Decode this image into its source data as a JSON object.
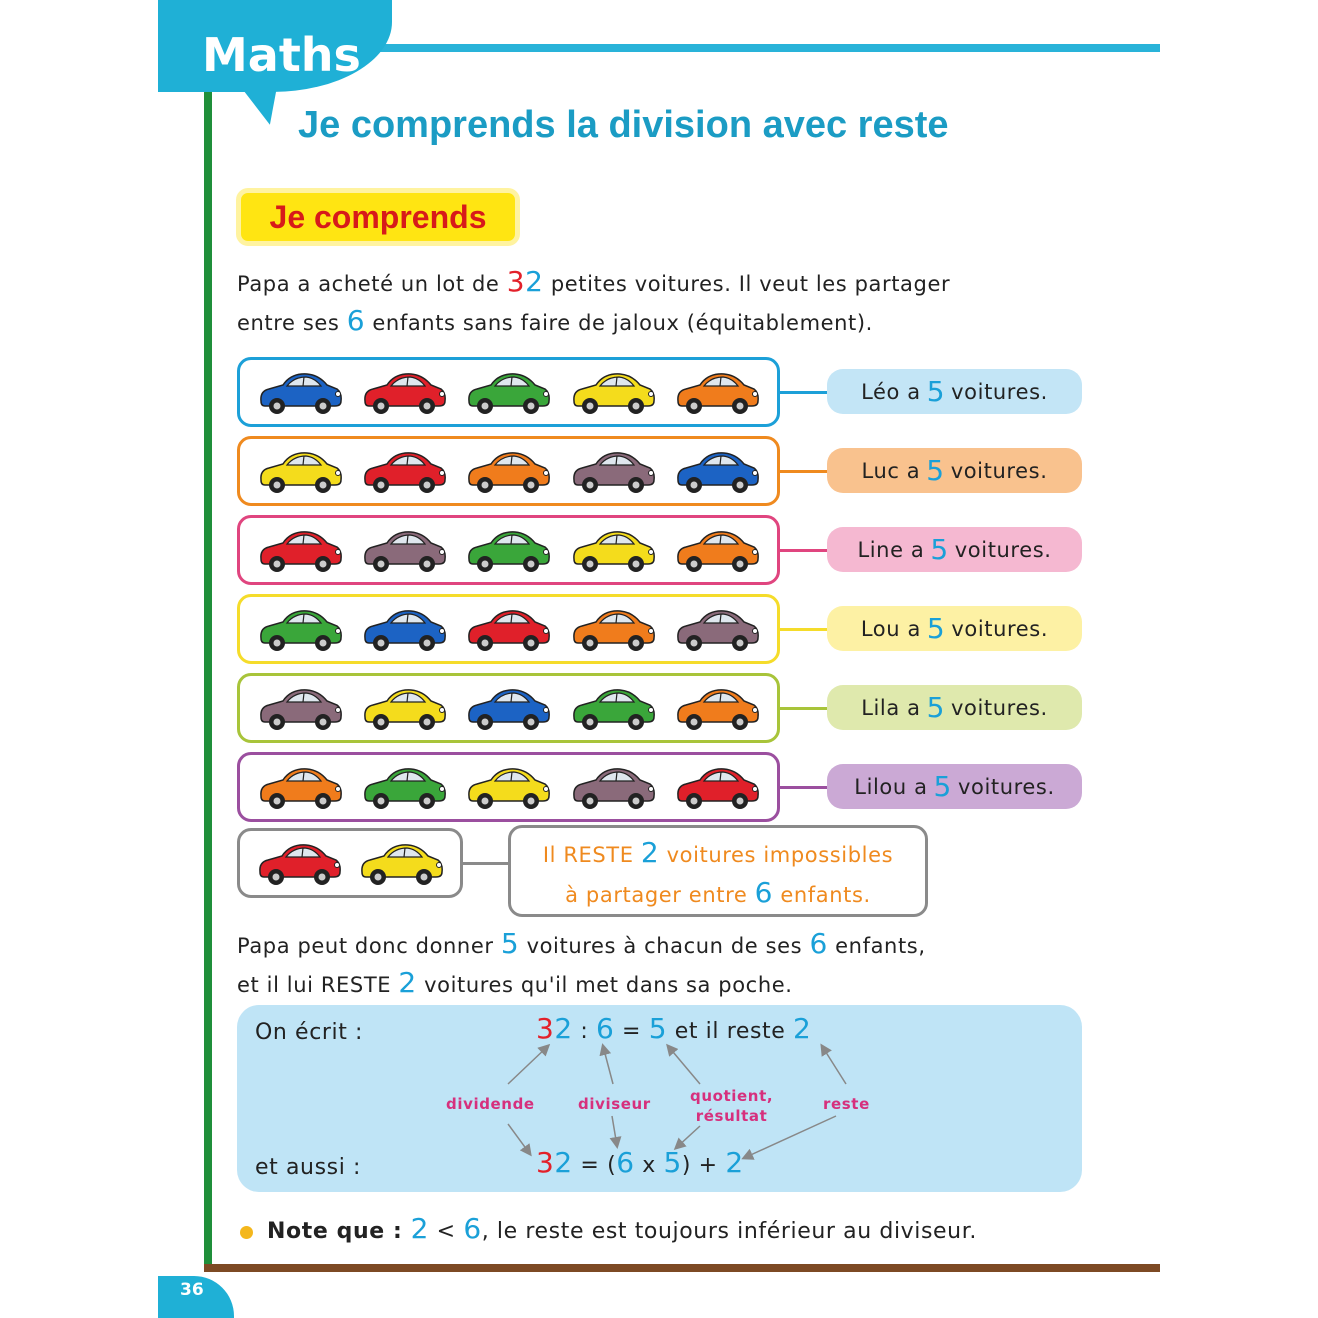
{
  "header": {
    "subject": "Maths",
    "title": "Je comprends la division avec reste"
  },
  "section": {
    "badge": "Je comprends"
  },
  "intro": {
    "line1_a": "Papa a acheté un lot de ",
    "line1_n1": "3",
    "line1_n2": "2",
    "line1_b": " petites voitures. Il veut les partager",
    "line2_a": "entre ses ",
    "line2_n": "6",
    "line2_b": " enfants sans faire de jaloux (équitablement)."
  },
  "rows": [
    {
      "name": "Léo",
      "count": "5",
      "suffix": "voitures.",
      "border": "#1ca0d8",
      "fill": "#c3e5f6",
      "cars": [
        "#1c63c4",
        "#e0202a",
        "#3aa63a",
        "#f4dc1c",
        "#f07c1c"
      ]
    },
    {
      "name": "Luc",
      "count": "5",
      "suffix": "voitures.",
      "border": "#ef8a1f",
      "fill": "#f9c28e",
      "cars": [
        "#f4dc1c",
        "#e0202a",
        "#f07c1c",
        "#8a6a7a",
        "#1c63c4"
      ]
    },
    {
      "name": "Line",
      "count": "5",
      "suffix": "voitures.",
      "border": "#e0457f",
      "fill": "#f5b8d1",
      "cars": [
        "#e0202a",
        "#8a6a7a",
        "#3aa63a",
        "#f4dc1c",
        "#f07c1c"
      ]
    },
    {
      "name": "Lou",
      "count": "5",
      "suffix": "voitures.",
      "border": "#f5dc2a",
      "fill": "#fdf1a4",
      "cars": [
        "#3aa63a",
        "#1c63c4",
        "#e0202a",
        "#f07c1c",
        "#8a6a7a"
      ]
    },
    {
      "name": "Lila",
      "count": "5",
      "suffix": "voitures.",
      "border": "#a8c43a",
      "fill": "#dfe9ad",
      "cars": [
        "#8a6a7a",
        "#f4dc1c",
        "#1c63c4",
        "#3aa63a",
        "#f07c1c"
      ]
    },
    {
      "name": "Lilou",
      "count": "5",
      "suffix": "voitures.",
      "border": "#9b4f9f",
      "fill": "#cba9d5",
      "cars": [
        "#f07c1c",
        "#3aa63a",
        "#f4dc1c",
        "#8a6a7a",
        "#e0202a"
      ]
    }
  ],
  "remainder": {
    "cars": [
      "#e0202a",
      "#f4dc1c"
    ],
    "l1_a": "Il RESTE ",
    "l1_n": "2",
    "l1_b": " voitures impossibles",
    "l2_a": "à partager entre ",
    "l2_n": "6",
    "l2_b": " enfants."
  },
  "conclusion": {
    "l1_a": "Papa peut donc donner ",
    "l1_n1": "5",
    "l1_b": " voitures à chacun de ses ",
    "l1_n2": "6",
    "l1_c": " enfants,",
    "l2_a": "et il lui RESTE ",
    "l2_n": "2",
    "l2_b": " voitures qu'il met dans sa poche."
  },
  "formula": {
    "on_ecrit": "On écrit :",
    "et_aussi": "et aussi :",
    "eq1": {
      "d1": "3",
      "d2": "2",
      "op1": " : ",
      "div": "6",
      "eq": " = ",
      "q": "5",
      "txt": " et il reste ",
      "rest": "2"
    },
    "eq2": {
      "d1": "3",
      "d2": "2",
      "eq": " = (",
      "div": "6",
      "x": " x ",
      "q": "5",
      "plus": ") + ",
      "rest": "2"
    },
    "labels": {
      "dividende": "dividende",
      "diviseur": "diviseur",
      "quotient1": "quotient,",
      "quotient2": "résultat",
      "reste": "reste"
    }
  },
  "note": {
    "bold": "Note que : ",
    "n1": "2",
    "lt": " < ",
    "n2": "6",
    "rest": ", le reste est toujours inférieur au diviseur."
  },
  "page_number": "36",
  "colors": {
    "accent": "#1fb0d6",
    "number_blue": "#1aa0d8",
    "number_red": "#e3202a",
    "label_pink": "#d6307d",
    "remainder_orange": "#ef8a1f"
  }
}
